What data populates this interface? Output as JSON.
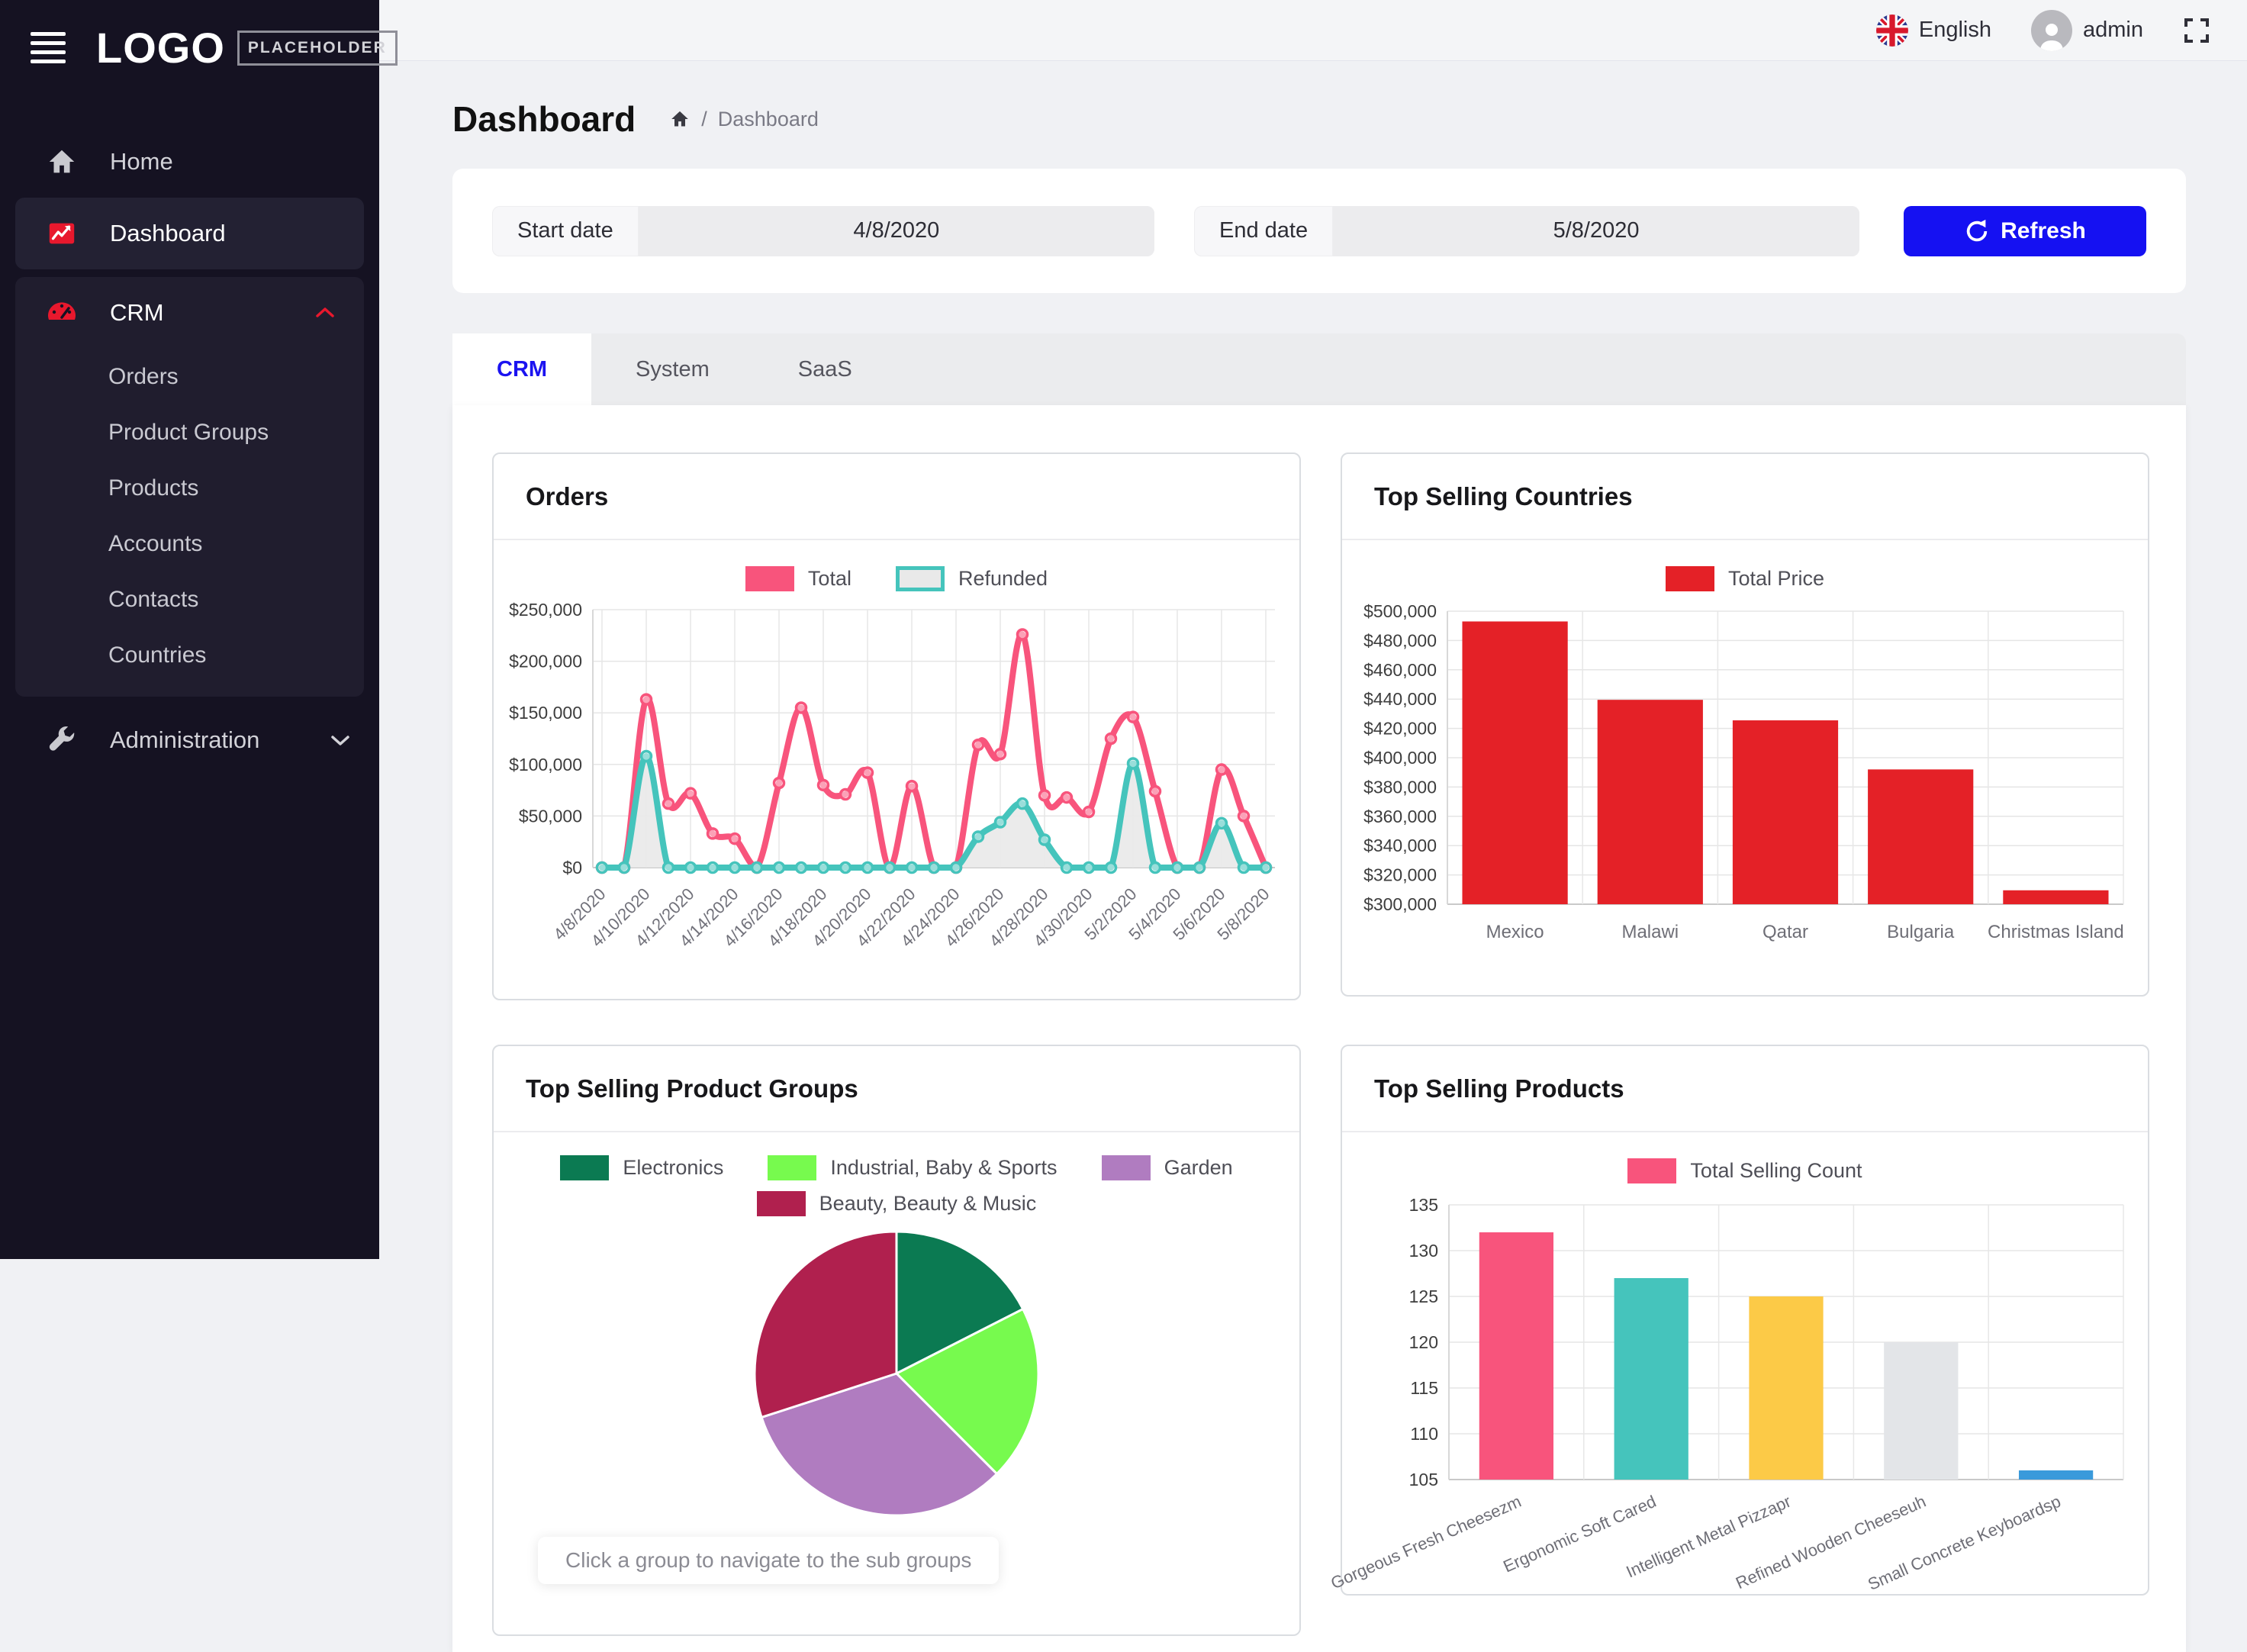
{
  "sidebar": {
    "logo_text": "LOGO",
    "logo_badge": "PLACEHOLDER",
    "home_label": "Home",
    "dashboard_label": "Dashboard",
    "crm": {
      "label": "CRM",
      "children": [
        "Orders",
        "Product Groups",
        "Products",
        "Accounts",
        "Contacts",
        "Countries"
      ]
    },
    "administration_label": "Administration"
  },
  "topbar": {
    "language": "English",
    "user": "admin"
  },
  "page": {
    "title": "Dashboard",
    "breadcrumb": {
      "separator": "/",
      "current": "Dashboard"
    }
  },
  "filters": {
    "start_label": "Start date",
    "start_value": "4/8/2020",
    "end_label": "End date",
    "end_value": "5/8/2020",
    "refresh_label": "Refresh"
  },
  "tabs": [
    {
      "label": "CRM",
      "active": true
    },
    {
      "label": "System",
      "active": false
    },
    {
      "label": "SaaS",
      "active": false
    }
  ],
  "chart_data": [
    {
      "type": "line",
      "title": "Orders",
      "x": [
        "4/8/2020",
        "4/9/2020",
        "4/10/2020",
        "4/11/2020",
        "4/12/2020",
        "4/13/2020",
        "4/14/2020",
        "4/15/2020",
        "4/16/2020",
        "4/17/2020",
        "4/18/2020",
        "4/19/2020",
        "4/20/2020",
        "4/21/2020",
        "4/22/2020",
        "4/23/2020",
        "4/24/2020",
        "4/25/2020",
        "4/26/2020",
        "4/27/2020",
        "4/28/2020",
        "4/29/2020",
        "4/30/2020",
        "5/1/2020",
        "5/2/2020",
        "5/3/2020",
        "5/4/2020",
        "5/5/2020",
        "5/6/2020",
        "5/7/2020",
        "5/8/2020"
      ],
      "xtick_every": 2,
      "ylim": [
        0,
        250000
      ],
      "ytick_step": 50000,
      "y_format": "usd",
      "grid": true,
      "legend_position": "top",
      "series": [
        {
          "name": "Total",
          "color": "#f8547c",
          "values": [
            0,
            0,
            163000,
            62000,
            72000,
            33000,
            28000,
            0,
            82000,
            155000,
            80000,
            71000,
            92000,
            0,
            79000,
            0,
            0,
            119000,
            110000,
            226000,
            70000,
            68000,
            54000,
            125000,
            146000,
            74000,
            0,
            0,
            95000,
            50000,
            0
          ]
        },
        {
          "name": "Refunded",
          "color": "#45c4bc",
          "fill": "#e9e9e9",
          "values": [
            0,
            0,
            108000,
            0,
            0,
            0,
            0,
            0,
            0,
            0,
            0,
            0,
            0,
            0,
            0,
            0,
            0,
            30000,
            44000,
            62000,
            27000,
            0,
            0,
            0,
            101000,
            0,
            0,
            0,
            43000,
            0,
            0
          ]
        }
      ]
    },
    {
      "type": "bar",
      "title": "Top Selling Countries",
      "legend_label": "Total Price",
      "color": "#e42127",
      "categories": [
        "Mexico",
        "Malawi",
        "Qatar",
        "Bulgaria",
        "Christmas Island"
      ],
      "values": [
        493000,
        439500,
        425500,
        392000,
        309500
      ],
      "ylim": [
        300000,
        500000
      ],
      "ytick_step": 20000,
      "y_format": "usd",
      "grid": true,
      "legend_position": "top"
    },
    {
      "type": "pie",
      "title": "Top Selling Product Groups",
      "labels": [
        "Electronics",
        "Industrial, Baby & Sports",
        "Garden",
        "Beauty, Beauty & Music"
      ],
      "values": [
        17.5,
        20,
        32.5,
        30
      ],
      "colors": [
        "#0b7a52",
        "#77fa4e",
        "#b07cc0",
        "#b0204e"
      ],
      "note": "Click a group to navigate to the sub groups",
      "legend_position": "top"
    },
    {
      "type": "bar",
      "title": "Top Selling Products",
      "legend_label": "Total Selling Count",
      "legend_color": "#f8547c",
      "categories": [
        "Gorgeous Fresh Cheesezm",
        "Ergonomic Soft Cared",
        "Intelligent Metal Pizzapr",
        "Refined Wooden Cheeseuh",
        "Small Concrete Keyboardsp"
      ],
      "values": [
        132,
        127,
        125,
        120,
        106
      ],
      "colors": [
        "#f8547c",
        "#45c4bc",
        "#fcca47",
        "#e3e5e8",
        "#3a9adb"
      ],
      "ylim": [
        105,
        135
      ],
      "ytick_step": 5,
      "y_format": "plain",
      "rotate_labels": -24,
      "grid": true,
      "legend_position": "top"
    }
  ]
}
